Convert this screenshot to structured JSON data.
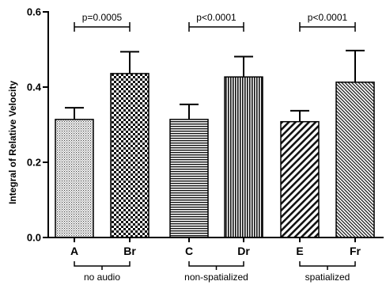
{
  "chart_data": {
    "type": "bar",
    "ylabel": "Integral of Relative Velocity",
    "ylim": [
      0,
      0.6
    ],
    "yticks": [
      "0.0",
      "0.2",
      "0.4",
      "0.6"
    ],
    "categories": [
      "A",
      "Br",
      "C",
      "Dr",
      "E",
      "Fr"
    ],
    "values": [
      0.314,
      0.436,
      0.314,
      0.427,
      0.308,
      0.413
    ],
    "errors": [
      0.031,
      0.058,
      0.04,
      0.054,
      0.029,
      0.084
    ],
    "patterns": [
      "fine-dots",
      "checker",
      "horizontal-lines",
      "vertical-lines",
      "diagonal-wide",
      "diagonal-fine"
    ],
    "groups": [
      {
        "label": "no audio",
        "members": [
          0,
          1
        ]
      },
      {
        "label": "non-spatialized",
        "members": [
          2,
          3
        ]
      },
      {
        "label": "spatialized",
        "members": [
          4,
          5
        ]
      }
    ],
    "significance": [
      {
        "label": "p=0.0005",
        "members": [
          0,
          1
        ],
        "y": 0.56
      },
      {
        "label": "p<0.0001",
        "members": [
          2,
          3
        ],
        "y": 0.56
      },
      {
        "label": "p<0.0001",
        "members": [
          4,
          5
        ],
        "y": 0.56
      }
    ],
    "grid": false
  }
}
